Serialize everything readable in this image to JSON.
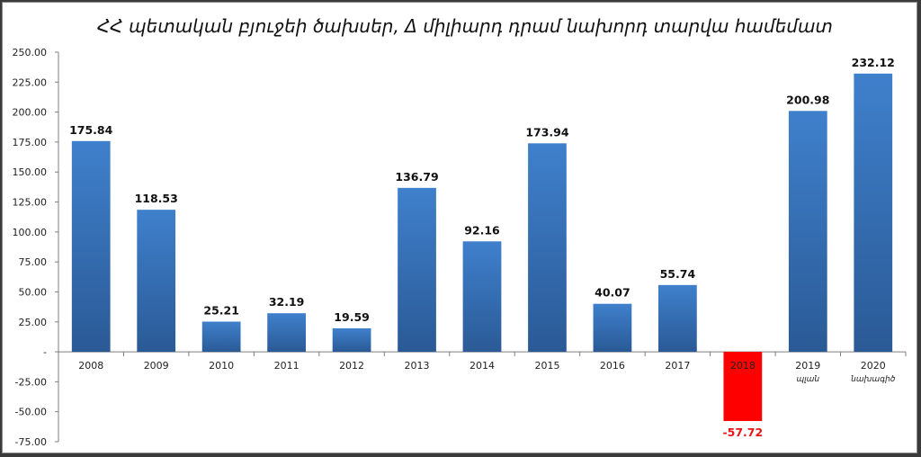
{
  "chart_data": {
    "type": "bar",
    "title": "ՀՀ պետական բյուջեի  ծախսեր,  Δ միլիարդ դրամ նախորդ տարվա համեմատ",
    "xlabel": "",
    "ylabel": "",
    "ylim": [
      -75,
      250
    ],
    "yticks": [
      "250.00",
      "225.00",
      "200.00",
      "175.00",
      "150.00",
      "125.00",
      "100.00",
      "75.00",
      "50.00",
      "25.00",
      "-",
      "-25.00",
      "-50.00",
      "-75.00"
    ],
    "categories": [
      "2008",
      "2009",
      "2010",
      "2011",
      "2012",
      "2013",
      "2014",
      "2015",
      "2016",
      "2017",
      "2018",
      "2019",
      "2020"
    ],
    "category_sublabels": [
      "",
      "",
      "",
      "",
      "",
      "",
      "",
      "",
      "",
      "",
      "",
      "պլան",
      "նախագիծ"
    ],
    "values": [
      175.84,
      118.53,
      25.21,
      32.19,
      19.59,
      136.79,
      92.16,
      173.94,
      40.07,
      55.74,
      -57.72,
      200.98,
      232.12
    ],
    "data_labels": [
      "175.84",
      "118.53",
      "25.21",
      "32.19",
      "19.59",
      "136.79",
      "92.16",
      "173.94",
      "40.07",
      "55.74",
      "-57.72",
      "200.98",
      "232.12"
    ],
    "grid": false,
    "legend": "none",
    "colors": {
      "positive_light": "#3f80cc",
      "positive_dark": "#2a5a96",
      "negative": "#ff0000",
      "negative_label": "#e81515"
    }
  }
}
